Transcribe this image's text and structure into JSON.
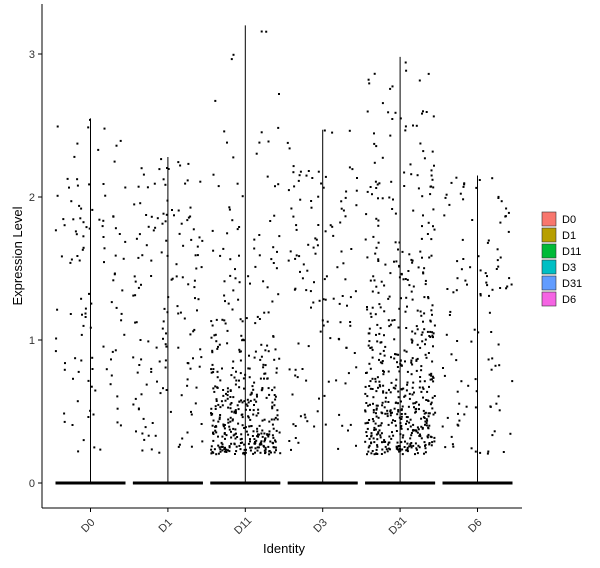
{
  "chart_data": {
    "type": "violin-jitter",
    "xlabel": "Identity",
    "ylabel": "Expression Level",
    "categories": [
      "D0",
      "D1",
      "D11",
      "D3",
      "D31",
      "D6"
    ],
    "ylim": [
      -0.18,
      3.35
    ],
    "yticks": [
      0,
      1,
      2,
      3
    ],
    "ytick_labels": [
      "0",
      "1",
      "2",
      "3"
    ],
    "max_values": [
      2.55,
      2.28,
      3.2,
      2.47,
      2.98,
      2.15
    ],
    "nonzero_point_counts": [
      110,
      150,
      420,
      130,
      560,
      110
    ],
    "point_color": "#000000",
    "grid": false,
    "legend": {
      "placement": "right",
      "entries": [
        {
          "label": "D0",
          "color": "#F8766D"
        },
        {
          "label": "D1",
          "color": "#B79F00"
        },
        {
          "label": "D11",
          "color": "#00BA38"
        },
        {
          "label": "D3",
          "color": "#00BFC4"
        },
        {
          "label": "D31",
          "color": "#619CFF"
        },
        {
          "label": "D6",
          "color": "#F564E3"
        }
      ]
    }
  }
}
